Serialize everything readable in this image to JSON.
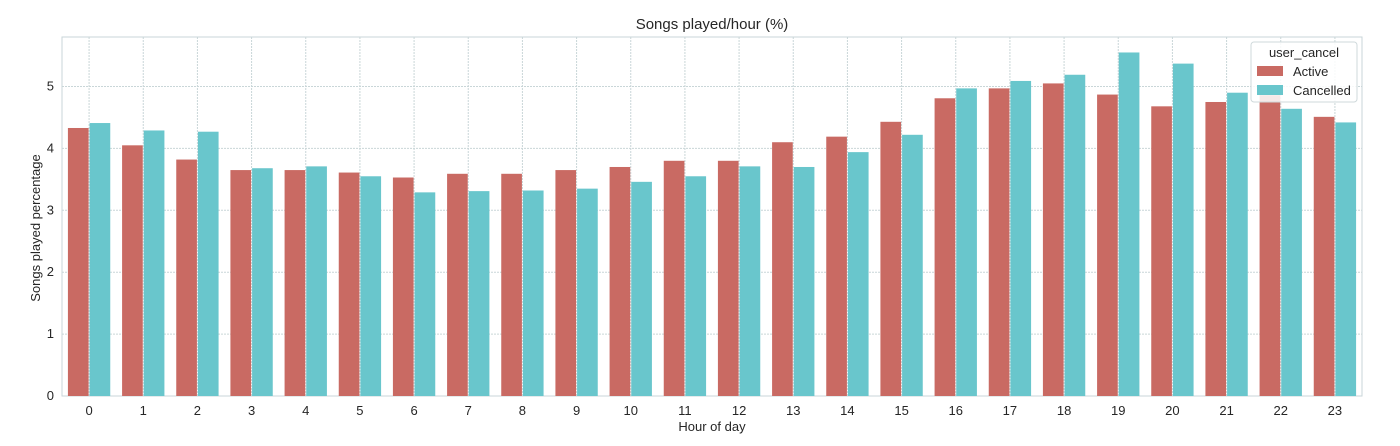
{
  "chart_data": {
    "type": "bar",
    "title": "Songs played/hour (%)",
    "xlabel": "Hour of day",
    "ylabel": "Songs played percentage",
    "ylim": [
      0,
      5.8
    ],
    "yticks": [
      0,
      1,
      2,
      3,
      4,
      5
    ],
    "grid": true,
    "categories": [
      "0",
      "1",
      "2",
      "3",
      "4",
      "5",
      "6",
      "7",
      "8",
      "9",
      "10",
      "11",
      "12",
      "13",
      "14",
      "15",
      "16",
      "17",
      "18",
      "19",
      "20",
      "21",
      "22",
      "23"
    ],
    "legend": {
      "title": "user_cancel",
      "placement": "top-right"
    },
    "series": [
      {
        "name": "Active",
        "color": "#c96a63",
        "values": [
          4.33,
          4.05,
          3.82,
          3.65,
          3.65,
          3.61,
          3.53,
          3.59,
          3.59,
          3.65,
          3.7,
          3.8,
          3.8,
          4.1,
          4.19,
          4.43,
          4.81,
          4.97,
          5.05,
          4.87,
          4.68,
          4.75,
          4.86,
          4.51
        ]
      },
      {
        "name": "Cancelled",
        "color": "#69c6cc",
        "values": [
          4.41,
          4.29,
          4.27,
          3.68,
          3.71,
          3.55,
          3.29,
          3.31,
          3.32,
          3.35,
          3.46,
          3.55,
          3.71,
          3.7,
          3.94,
          4.22,
          4.97,
          5.09,
          5.19,
          5.55,
          5.37,
          4.9,
          4.64,
          4.42
        ]
      }
    ]
  }
}
